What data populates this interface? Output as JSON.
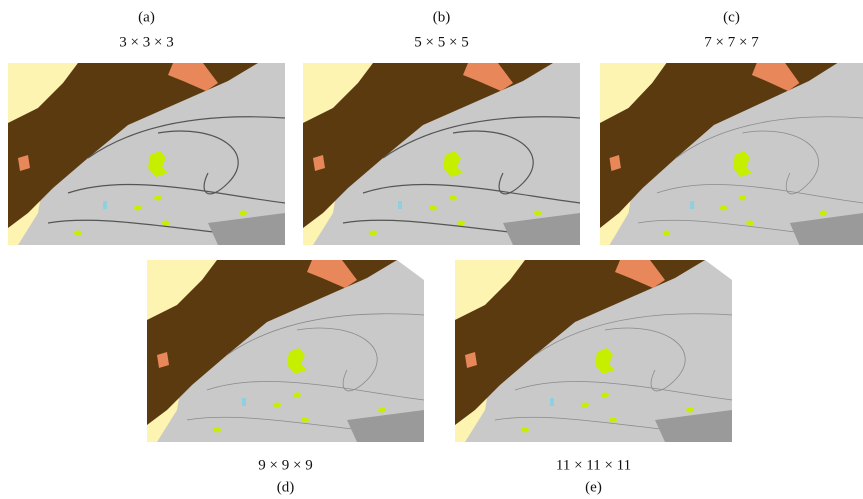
{
  "panels": [
    {
      "label": "(a)",
      "caption": "3 × 3 × 3"
    },
    {
      "label": "(b)",
      "caption": "5 × 5 × 5"
    },
    {
      "label": "(c)",
      "caption": "7 × 7 × 7"
    },
    {
      "label": "(d)",
      "caption": "9 × 9 × 9"
    },
    {
      "label": "(e)",
      "caption": "11 × 11 × 11"
    }
  ]
}
